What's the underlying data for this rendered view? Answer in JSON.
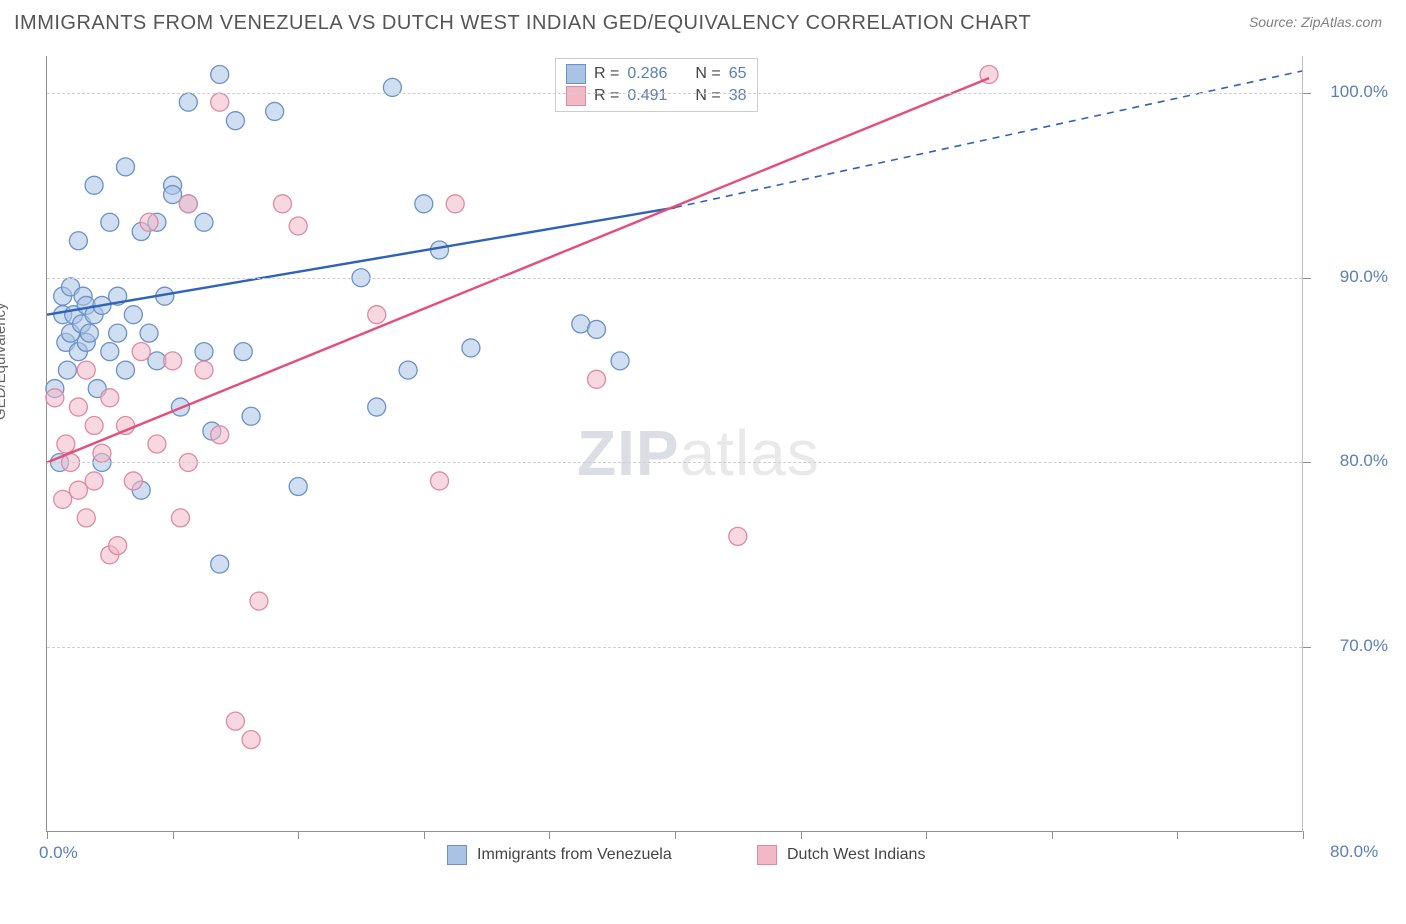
{
  "title": "IMMIGRANTS FROM VENEZUELA VS DUTCH WEST INDIAN GED/EQUIVALENCY CORRELATION CHART",
  "source_label": "Source: ZipAtlas.com",
  "y_axis_label": "GED/Equivalency",
  "watermark_zip": "ZIP",
  "watermark_atlas": "atlas",
  "chart": {
    "type": "scatter",
    "xlim": [
      0,
      80
    ],
    "ylim": [
      60,
      102
    ],
    "y_ticks": [
      70,
      80,
      90,
      100
    ],
    "y_tick_labels": [
      "70.0%",
      "80.0%",
      "90.0%",
      "100.0%"
    ],
    "x_tick_positions": [
      0,
      8,
      16,
      24,
      32,
      40,
      48,
      56,
      64,
      72,
      80
    ],
    "x_first_label": "0.0%",
    "x_last_label": "80.0%",
    "background_color": "#ffffff",
    "grid_color": "#cfcfcf",
    "axis_color": "#909090",
    "marker_radius": 9,
    "marker_opacity": 0.55,
    "series": [
      {
        "id": "venezuela",
        "label": "Immigrants from Venezuela",
        "color_fill": "#a9c2e5",
        "color_stroke": "#6b91c9",
        "trend_color": "#2f62b8",
        "trend_width": 2.4,
        "trend_solid": {
          "x1": 0,
          "y1": 88,
          "x2": 40,
          "y2": 93.8
        },
        "trend_dash": {
          "x1": 40,
          "y1": 93.8,
          "x2": 80,
          "y2": 101.2
        },
        "R": "0.286",
        "N": "65",
        "points": [
          [
            0.5,
            84
          ],
          [
            0.8,
            80
          ],
          [
            1,
            88
          ],
          [
            1,
            89
          ],
          [
            1.2,
            86.5
          ],
          [
            1.3,
            85
          ],
          [
            1.5,
            87
          ],
          [
            1.5,
            89.5
          ],
          [
            1.7,
            88
          ],
          [
            2,
            86
          ],
          [
            2,
            92
          ],
          [
            2.2,
            87.5
          ],
          [
            2.3,
            89
          ],
          [
            2.5,
            88.5
          ],
          [
            2.5,
            86.5
          ],
          [
            2.7,
            87
          ],
          [
            3,
            88
          ],
          [
            3,
            95
          ],
          [
            3.2,
            84
          ],
          [
            3.5,
            88.5
          ],
          [
            3.5,
            80
          ],
          [
            4,
            86
          ],
          [
            4,
            93
          ],
          [
            4.5,
            89
          ],
          [
            4.5,
            87
          ],
          [
            5,
            96
          ],
          [
            5,
            85
          ],
          [
            5.5,
            88
          ],
          [
            6,
            92.5
          ],
          [
            6,
            78.5
          ],
          [
            6.5,
            87
          ],
          [
            7,
            93
          ],
          [
            7,
            85.5
          ],
          [
            7.5,
            89
          ],
          [
            8,
            95
          ],
          [
            8.5,
            83
          ],
          [
            9,
            94
          ],
          [
            9,
            99.5
          ],
          [
            10,
            93
          ],
          [
            10,
            86
          ],
          [
            10.5,
            81.7
          ],
          [
            11,
            74.5
          ],
          [
            11,
            101
          ],
          [
            12,
            98.5
          ],
          [
            12.5,
            86
          ],
          [
            13,
            82.5
          ],
          [
            8,
            94.5
          ],
          [
            14.5,
            99
          ],
          [
            16,
            78.7
          ],
          [
            20,
            90
          ],
          [
            21,
            83
          ],
          [
            22,
            100.3
          ],
          [
            23,
            85
          ],
          [
            24,
            94
          ],
          [
            25,
            91.5
          ],
          [
            27,
            86.2
          ],
          [
            34,
            87.5
          ],
          [
            35,
            87.2
          ],
          [
            36,
            100.5
          ],
          [
            36.5,
            85.5
          ]
        ]
      },
      {
        "id": "dutch",
        "label": "Dutch West Indians",
        "color_fill": "#f2b8c6",
        "color_stroke": "#de8aa2",
        "trend_color": "#e54d7a",
        "trend_width": 2.4,
        "trend_solid": {
          "x1": 0,
          "y1": 80,
          "x2": 60,
          "y2": 100.8
        },
        "trend_dash": null,
        "R": "0.491",
        "N": "38",
        "points": [
          [
            0.5,
            83.5
          ],
          [
            1,
            78
          ],
          [
            1.2,
            81
          ],
          [
            1.5,
            80
          ],
          [
            2,
            78.5
          ],
          [
            2,
            83
          ],
          [
            2.5,
            85
          ],
          [
            2.5,
            77
          ],
          [
            3,
            79
          ],
          [
            3,
            82
          ],
          [
            3.5,
            80.5
          ],
          [
            4,
            75
          ],
          [
            4,
            83.5
          ],
          [
            4.5,
            75.5
          ],
          [
            5,
            82
          ],
          [
            5.5,
            79
          ],
          [
            6,
            86
          ],
          [
            6.5,
            93
          ],
          [
            7,
            81
          ],
          [
            8,
            85.5
          ],
          [
            8.5,
            77
          ],
          [
            9,
            80
          ],
          [
            10,
            85
          ],
          [
            11,
            81.5
          ],
          [
            11,
            99.5
          ],
          [
            12,
            66
          ],
          [
            13,
            65
          ],
          [
            13.5,
            72.5
          ],
          [
            15,
            94
          ],
          [
            16,
            92.8
          ],
          [
            9,
            94
          ],
          [
            21,
            88
          ],
          [
            25,
            79
          ],
          [
            26,
            94
          ],
          [
            35,
            84.5
          ],
          [
            44,
            76
          ],
          [
            60,
            101
          ]
        ]
      }
    ]
  },
  "top_legend": {
    "r_label": "R =",
    "n_label": "N ="
  },
  "bottom_legend": {
    "series1_label": "Immigrants from Venezuela",
    "series2_label": "Dutch West Indians"
  }
}
